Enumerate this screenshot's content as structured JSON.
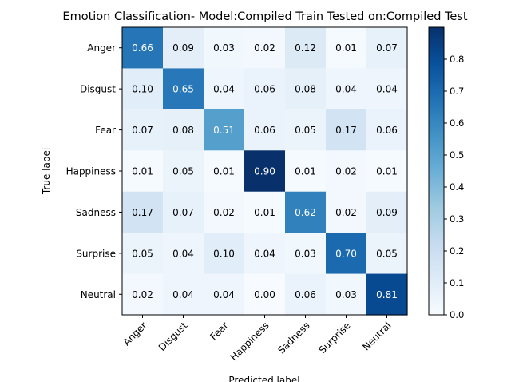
{
  "chart_data": {
    "type": "heatmap",
    "title": "Emotion Classification- Model:Compiled Train Tested on:Compiled Test",
    "xlabel": "Predicted label",
    "ylabel": "True label",
    "x_categories": [
      "Anger",
      "Disgust",
      "Fear",
      "Happiness",
      "Sadness",
      "Surprise",
      "Neutral"
    ],
    "y_categories": [
      "Anger",
      "Disgust",
      "Fear",
      "Happiness",
      "Sadness",
      "Surprise",
      "Neutral"
    ],
    "values": [
      [
        0.66,
        0.09,
        0.03,
        0.02,
        0.12,
        0.01,
        0.07
      ],
      [
        0.1,
        0.65,
        0.04,
        0.06,
        0.08,
        0.04,
        0.04
      ],
      [
        0.07,
        0.08,
        0.51,
        0.06,
        0.05,
        0.17,
        0.06
      ],
      [
        0.01,
        0.05,
        0.01,
        0.9,
        0.01,
        0.02,
        0.01
      ],
      [
        0.17,
        0.07,
        0.02,
        0.01,
        0.62,
        0.02,
        0.09
      ],
      [
        0.05,
        0.04,
        0.1,
        0.04,
        0.03,
        0.7,
        0.05
      ],
      [
        0.02,
        0.04,
        0.04,
        0.0,
        0.06,
        0.03,
        0.81
      ]
    ],
    "value_format": "0.00",
    "colormap": "Blues",
    "colorbar": {
      "range": [
        0.0,
        0.9
      ],
      "ticks": [
        0.0,
        0.1,
        0.2,
        0.3,
        0.4,
        0.5,
        0.6,
        0.7,
        0.8
      ],
      "tick_labels": [
        "0.0",
        "0.1",
        "0.2",
        "0.3",
        "0.4",
        "0.5",
        "0.6",
        "0.7",
        "0.8"
      ]
    },
    "text_colors": {
      "dark": "#000000",
      "light": "#ffffff",
      "threshold": 0.45
    }
  }
}
